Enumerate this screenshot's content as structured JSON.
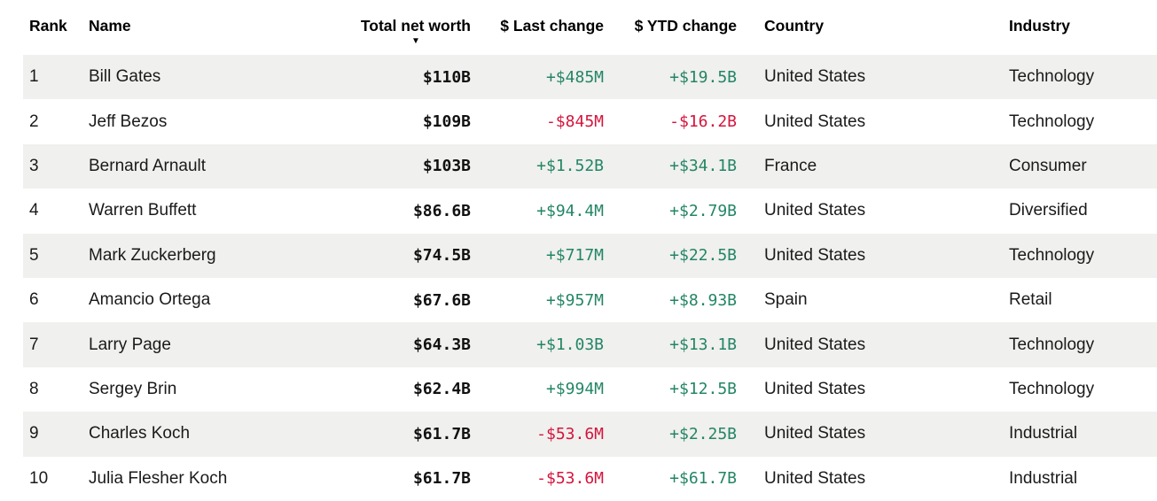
{
  "table": {
    "columns": [
      {
        "label": "Rank"
      },
      {
        "label": "Name"
      },
      {
        "label": "Total net worth",
        "sorted": true
      },
      {
        "label": "$ Last change"
      },
      {
        "label": "$ YTD change"
      },
      {
        "label": "Country"
      },
      {
        "label": "Industry"
      }
    ],
    "sort_icon": "▼",
    "sorted_column": "Total net worth",
    "sort_direction": "descending",
    "rows": [
      {
        "rank": "1",
        "name": "Bill Gates",
        "net_worth": "$110B",
        "last_change": "+$485M",
        "ytd_change": "+$19.5B",
        "country": "United States",
        "industry": "Technology"
      },
      {
        "rank": "2",
        "name": "Jeff Bezos",
        "net_worth": "$109B",
        "last_change": "-$845M",
        "ytd_change": "-$16.2B",
        "country": "United States",
        "industry": "Technology"
      },
      {
        "rank": "3",
        "name": "Bernard Arnault",
        "net_worth": "$103B",
        "last_change": "+$1.52B",
        "ytd_change": "+$34.1B",
        "country": "France",
        "industry": "Consumer"
      },
      {
        "rank": "4",
        "name": "Warren Buffett",
        "net_worth": "$86.6B",
        "last_change": "+$94.4M",
        "ytd_change": "+$2.79B",
        "country": "United States",
        "industry": "Diversified"
      },
      {
        "rank": "5",
        "name": "Mark Zuckerberg",
        "net_worth": "$74.5B",
        "last_change": "+$717M",
        "ytd_change": "+$22.5B",
        "country": "United States",
        "industry": "Technology"
      },
      {
        "rank": "6",
        "name": "Amancio Ortega",
        "net_worth": "$67.6B",
        "last_change": "+$957M",
        "ytd_change": "+$8.93B",
        "country": "Spain",
        "industry": "Retail"
      },
      {
        "rank": "7",
        "name": "Larry Page",
        "net_worth": "$64.3B",
        "last_change": "+$1.03B",
        "ytd_change": "+$13.1B",
        "country": "United States",
        "industry": "Technology"
      },
      {
        "rank": "8",
        "name": "Sergey Brin",
        "net_worth": "$62.4B",
        "last_change": "+$994M",
        "ytd_change": "+$12.5B",
        "country": "United States",
        "industry": "Technology"
      },
      {
        "rank": "9",
        "name": "Charles Koch",
        "net_worth": "$61.7B",
        "last_change": "-$53.6M",
        "ytd_change": "+$2.25B",
        "country": "United States",
        "industry": "Industrial"
      },
      {
        "rank": "10",
        "name": "Julia Flesher Koch",
        "net_worth": "$61.7B",
        "last_change": "-$53.6M",
        "ytd_change": "+$61.7B",
        "country": "United States",
        "industry": "Industrial"
      }
    ]
  },
  "colors": {
    "positive": "#238566",
    "negative": "#d5143c",
    "stripe": "#f0f0ee"
  }
}
